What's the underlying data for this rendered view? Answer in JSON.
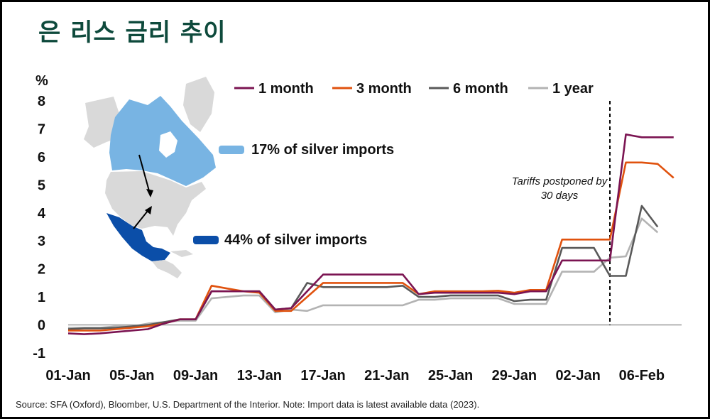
{
  "title": "은 리스 금리 추이",
  "source": "Source: SFA (Oxford), Bloomber, U.S. Department of the Interior. Note: Import data is latest available data (2023).",
  "map_annotations": {
    "canada": "17% of silver imports",
    "mexico": "44% of silver imports"
  },
  "tariff_note": [
    "Tariffs postponed by",
    "30 days"
  ],
  "colors": {
    "1 month": "#7b1452",
    "3 month": "#e0520e",
    "6 month": "#595959",
    "1 year": "#b3b3b3",
    "canada": "#78b4e3",
    "mexico": "#0b4ea8",
    "land": "#d9d9d9",
    "title": "#0e4a3c"
  },
  "chart_data": {
    "type": "line",
    "ylabel": "%",
    "ylim": [
      -1,
      8
    ],
    "yticks": [
      "-1",
      "0",
      "1",
      "2",
      "3",
      "4",
      "5",
      "6",
      "7",
      "8"
    ],
    "xticks": [
      "01-Jan",
      "05-Jan",
      "09-Jan",
      "13-Jan",
      "17-Jan",
      "21-Jan",
      "25-Jan",
      "29-Jan",
      "02-Jan",
      "06-Feb"
    ],
    "xrange_days": [
      0,
      38.5
    ],
    "marker_day": 34,
    "legend_position": "top-right",
    "series": [
      {
        "name": "1 month",
        "points": [
          [
            0,
            -0.3
          ],
          [
            1,
            -0.33
          ],
          [
            2,
            -0.3
          ],
          [
            3,
            -0.25
          ],
          [
            4,
            -0.2
          ],
          [
            5,
            -0.15
          ],
          [
            6,
            0.05
          ],
          [
            7,
            0.2
          ],
          [
            8,
            0.2
          ],
          [
            9,
            1.2
          ],
          [
            10,
            1.2
          ],
          [
            11,
            1.2
          ],
          [
            12,
            1.2
          ],
          [
            13,
            0.55
          ],
          [
            14,
            0.6
          ],
          [
            15,
            1.2
          ],
          [
            16,
            1.8
          ],
          [
            17,
            1.8
          ],
          [
            18,
            1.8
          ],
          [
            19,
            1.8
          ],
          [
            20,
            1.8
          ],
          [
            21,
            1.8
          ],
          [
            22,
            1.1
          ],
          [
            23,
            1.15
          ],
          [
            24,
            1.15
          ],
          [
            25,
            1.15
          ],
          [
            26,
            1.15
          ],
          [
            27,
            1.15
          ],
          [
            28,
            1.1
          ],
          [
            29,
            1.2
          ],
          [
            30,
            1.2
          ],
          [
            31,
            2.3
          ],
          [
            32,
            2.3
          ],
          [
            33,
            2.3
          ],
          [
            34,
            2.3
          ],
          [
            35,
            6.8
          ],
          [
            36,
            6.7
          ],
          [
            37,
            6.7
          ],
          [
            38,
            6.7
          ]
        ]
      },
      {
        "name": "3 month",
        "points": [
          [
            0,
            -0.2
          ],
          [
            1,
            -0.2
          ],
          [
            2,
            -0.2
          ],
          [
            3,
            -0.15
          ],
          [
            4,
            -0.1
          ],
          [
            5,
            -0.05
          ],
          [
            6,
            0.05
          ],
          [
            7,
            0.2
          ],
          [
            8,
            0.2
          ],
          [
            9,
            1.4
          ],
          [
            10,
            1.3
          ],
          [
            11,
            1.2
          ],
          [
            12,
            1.15
          ],
          [
            13,
            0.5
          ],
          [
            14,
            0.5
          ],
          [
            15,
            1.0
          ],
          [
            16,
            1.5
          ],
          [
            17,
            1.5
          ],
          [
            18,
            1.5
          ],
          [
            19,
            1.5
          ],
          [
            20,
            1.5
          ],
          [
            21,
            1.5
          ],
          [
            22,
            1.1
          ],
          [
            23,
            1.2
          ],
          [
            24,
            1.2
          ],
          [
            25,
            1.2
          ],
          [
            26,
            1.2
          ],
          [
            27,
            1.22
          ],
          [
            28,
            1.15
          ],
          [
            29,
            1.25
          ],
          [
            30,
            1.25
          ],
          [
            31,
            3.05
          ],
          [
            32,
            3.05
          ],
          [
            33,
            3.05
          ],
          [
            34,
            3.05
          ],
          [
            35,
            5.8
          ],
          [
            36,
            5.8
          ],
          [
            37,
            5.75
          ],
          [
            38,
            5.25
          ]
        ]
      },
      {
        "name": "6 month",
        "points": [
          [
            0,
            -0.15
          ],
          [
            1,
            -0.12
          ],
          [
            2,
            -0.12
          ],
          [
            3,
            -0.1
          ],
          [
            4,
            -0.05
          ],
          [
            5,
            0.0
          ],
          [
            6,
            0.1
          ],
          [
            7,
            0.2
          ],
          [
            8,
            0.2
          ],
          [
            9,
            1.2
          ],
          [
            10,
            1.2
          ],
          [
            11,
            1.2
          ],
          [
            12,
            1.2
          ],
          [
            13,
            0.55
          ],
          [
            14,
            0.6
          ],
          [
            15,
            1.5
          ],
          [
            16,
            1.35
          ],
          [
            17,
            1.35
          ],
          [
            18,
            1.35
          ],
          [
            19,
            1.35
          ],
          [
            20,
            1.35
          ],
          [
            21,
            1.4
          ],
          [
            22,
            1.0
          ],
          [
            23,
            1.0
          ],
          [
            24,
            1.05
          ],
          [
            25,
            1.05
          ],
          [
            26,
            1.05
          ],
          [
            27,
            1.05
          ],
          [
            28,
            0.85
          ],
          [
            29,
            0.9
          ],
          [
            30,
            0.9
          ],
          [
            31,
            2.75
          ],
          [
            32,
            2.75
          ],
          [
            33,
            2.75
          ],
          [
            34,
            1.75
          ],
          [
            35,
            1.75
          ],
          [
            36,
            4.25
          ],
          [
            37,
            3.5
          ]
        ]
      },
      {
        "name": "1 year",
        "points": [
          [
            0,
            -0.1
          ],
          [
            1,
            -0.1
          ],
          [
            2,
            -0.1
          ],
          [
            3,
            -0.05
          ],
          [
            4,
            -0.05
          ],
          [
            5,
            0.05
          ],
          [
            6,
            0.1
          ],
          [
            7,
            0.15
          ],
          [
            8,
            0.15
          ],
          [
            9,
            0.95
          ],
          [
            10,
            1.0
          ],
          [
            11,
            1.05
          ],
          [
            12,
            1.05
          ],
          [
            13,
            0.45
          ],
          [
            14,
            0.55
          ],
          [
            15,
            0.5
          ],
          [
            16,
            0.7
          ],
          [
            17,
            0.7
          ],
          [
            18,
            0.7
          ],
          [
            19,
            0.7
          ],
          [
            20,
            0.7
          ],
          [
            21,
            0.7
          ],
          [
            22,
            0.9
          ],
          [
            23,
            0.9
          ],
          [
            24,
            0.95
          ],
          [
            25,
            0.95
          ],
          [
            26,
            0.95
          ],
          [
            27,
            0.95
          ],
          [
            28,
            0.75
          ],
          [
            29,
            0.75
          ],
          [
            30,
            0.75
          ],
          [
            31,
            1.9
          ],
          [
            32,
            1.9
          ],
          [
            33,
            1.9
          ],
          [
            34,
            2.4
          ],
          [
            35,
            2.45
          ],
          [
            36,
            3.8
          ],
          [
            37,
            3.3
          ]
        ]
      }
    ]
  }
}
